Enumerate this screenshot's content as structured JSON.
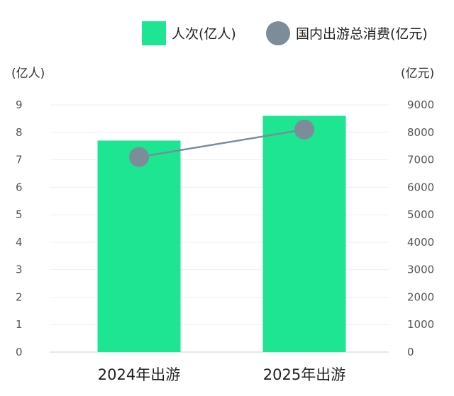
{
  "chart_data": {
    "type": "bar+line",
    "categories": [
      "2024年出游",
      "2025年出游"
    ],
    "series": [
      {
        "name": "人次(亿人)",
        "type": "bar",
        "axis": "left",
        "values": [
          7.7,
          8.6
        ]
      },
      {
        "name": "国内出游总消费(亿元)",
        "type": "line",
        "axis": "right",
        "values": [
          7100,
          8100
        ]
      }
    ],
    "y_left": {
      "unit": "(亿人)",
      "ylim": [
        0,
        9
      ],
      "ticks": [
        "0",
        "1",
        "2",
        "3",
        "4",
        "5",
        "6",
        "7",
        "8",
        "9"
      ]
    },
    "y_right": {
      "unit": "(亿元)",
      "ylim": [
        0,
        9000
      ],
      "ticks": [
        "0",
        "1000",
        "2000",
        "3000",
        "4000",
        "5000",
        "6000",
        "7000",
        "8000",
        "9000"
      ]
    },
    "grid": true,
    "legend_position": "top-right",
    "colors": {
      "bar": "#1de592",
      "line": "#7c8c99",
      "marker": "#7c8c99"
    }
  }
}
